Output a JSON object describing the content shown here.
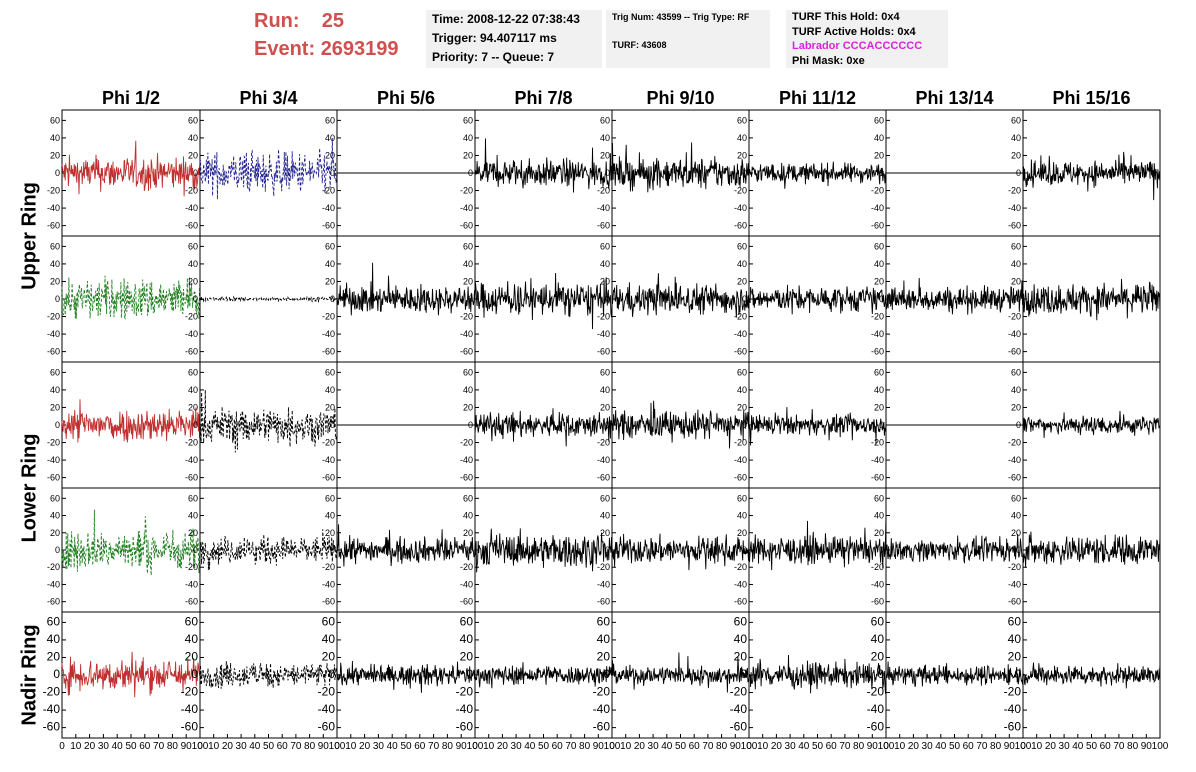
{
  "header": {
    "run_label": "Run:",
    "run_value": "25",
    "event_label": "Event:",
    "event_value": "2693199",
    "title_color": "#d05050"
  },
  "info": {
    "time": "Time: 2008-12-22 07:38:43",
    "trigger": "Trigger: 94.407117 ms",
    "priority": "Priority: 7 -- Queue: 7",
    "trig_num": "Trig Num: 43599 -- Trig Type: RF",
    "turf": "TURF: 43608",
    "turf_this_hold": "TURF This Hold: 0x4",
    "turf_active_holds": "TURF Active Holds: 0x4",
    "labrador": "Labrador CCCACCCCCC",
    "labrador_color": "#e020e0",
    "phi_mask": "Phi Mask: 0xe"
  },
  "chart_data": {
    "type": "line",
    "description": "Grid of waveform panels, 5 rows x 8 phi columns",
    "columns": [
      "Phi 1/2",
      "Phi 3/4",
      "Phi 5/6",
      "Phi 7/8",
      "Phi 9/10",
      "Phi 11/12",
      "Phi 13/14",
      "Phi 15/16"
    ],
    "row_labels": [
      "Upper Ring",
      "Lower Ring",
      "Nadir Ring"
    ],
    "x_ticks": [
      0,
      10,
      20,
      30,
      40,
      50,
      60,
      70,
      80,
      90,
      100
    ],
    "xlim": [
      0,
      100
    ],
    "y_ticks": [
      60,
      40,
      20,
      0,
      -20,
      -40,
      -60
    ],
    "ylim": [
      -65,
      65
    ],
    "series_colors": {
      "red": "#c03030",
      "green": "#208020",
      "blue": "#202090",
      "black": "#000000"
    },
    "panels": [
      [
        {
          "color": "red",
          "style": "solid",
          "amplitude": 24
        },
        {
          "color": "blue",
          "style": "dashed",
          "amplitude": 30
        },
        {
          "color": "black",
          "style": "flat",
          "amplitude": 0
        },
        {
          "color": "black",
          "style": "solid",
          "amplitude": 20
        },
        {
          "color": "black",
          "style": "solid",
          "amplitude": 22
        },
        {
          "color": "black",
          "style": "solid",
          "amplitude": 14
        },
        {
          "color": "black",
          "style": "flat",
          "amplitude": 0
        },
        {
          "color": "black",
          "style": "solid",
          "amplitude": 18
        }
      ],
      [
        {
          "color": "green",
          "style": "dashed",
          "amplitude": 30
        },
        {
          "color": "black",
          "style": "dashed",
          "amplitude": 3
        },
        {
          "color": "black",
          "style": "solid",
          "amplitude": 20
        },
        {
          "color": "black",
          "style": "solid",
          "amplitude": 24
        },
        {
          "color": "black",
          "style": "solid",
          "amplitude": 22
        },
        {
          "color": "black",
          "style": "solid",
          "amplitude": 18
        },
        {
          "color": "black",
          "style": "solid",
          "amplitude": 18
        },
        {
          "color": "black",
          "style": "solid",
          "amplitude": 22
        }
      ],
      [
        {
          "color": "red",
          "style": "solid",
          "amplitude": 24
        },
        {
          "color": "black",
          "style": "dashed",
          "amplitude": 26
        },
        {
          "color": "black",
          "style": "flat",
          "amplitude": 0
        },
        {
          "color": "black",
          "style": "solid",
          "amplitude": 18
        },
        {
          "color": "black",
          "style": "solid",
          "amplitude": 20
        },
        {
          "color": "black",
          "style": "solid",
          "amplitude": 14
        },
        {
          "color": "black",
          "style": "flat",
          "amplitude": 0
        },
        {
          "color": "black",
          "style": "solid",
          "amplitude": 14
        }
      ],
      [
        {
          "color": "green",
          "style": "dashed",
          "amplitude": 30
        },
        {
          "color": "black",
          "style": "dashed",
          "amplitude": 20
        },
        {
          "color": "black",
          "style": "solid",
          "amplitude": 18
        },
        {
          "color": "black",
          "style": "solid",
          "amplitude": 24
        },
        {
          "color": "black",
          "style": "solid",
          "amplitude": 20
        },
        {
          "color": "black",
          "style": "solid",
          "amplitude": 20
        },
        {
          "color": "black",
          "style": "solid",
          "amplitude": 16
        },
        {
          "color": "black",
          "style": "solid",
          "amplitude": 22
        }
      ],
      [
        {
          "color": "red",
          "style": "solid",
          "amplitude": 24
        },
        {
          "color": "black",
          "style": "dashed",
          "amplitude": 18
        },
        {
          "color": "black",
          "style": "solid",
          "amplitude": 14
        },
        {
          "color": "black",
          "style": "solid",
          "amplitude": 14
        },
        {
          "color": "black",
          "style": "solid",
          "amplitude": 14
        },
        {
          "color": "black",
          "style": "solid",
          "amplitude": 18
        },
        {
          "color": "black",
          "style": "solid",
          "amplitude": 14
        },
        {
          "color": "black",
          "style": "solid",
          "amplitude": 14
        }
      ]
    ]
  }
}
